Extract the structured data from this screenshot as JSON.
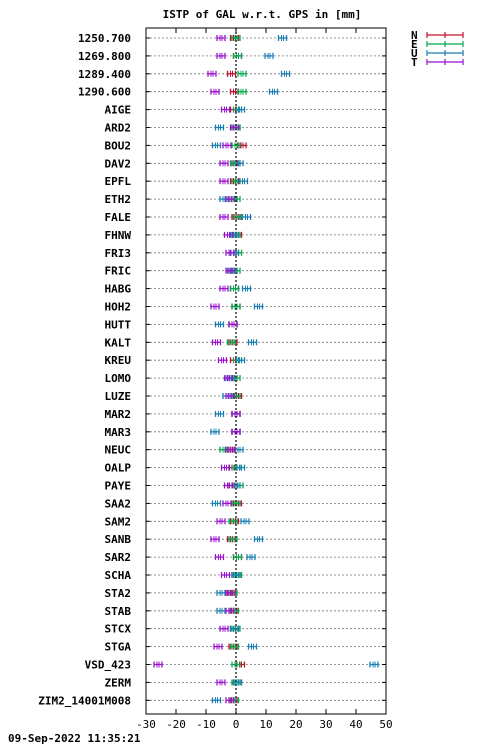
{
  "chart_data": {
    "type": "scatter",
    "title": "ISTP of GAL w.r.t. GPS in [mm]",
    "xlim": [
      -30,
      50
    ],
    "xticks": [
      -30,
      -20,
      -10,
      0,
      10,
      20,
      30,
      40,
      50
    ],
    "grid": true,
    "legend_placement": "top-right",
    "categories": [
      "1250.700",
      "1269.800",
      "1289.400",
      "1290.600",
      "AIGE",
      "ARD2",
      "BOU2",
      "DAV2",
      "EPFL",
      "ETH2",
      "FALE",
      "FHNW",
      "FRI3",
      "FRIC",
      "HABG",
      "HOH2",
      "HUTT",
      "KALT",
      "KREU",
      "LOMO",
      "LUZE",
      "MAR2",
      "MAR3",
      "NEUC",
      "OALP",
      "PAYE",
      "SAA2",
      "SAM2",
      "SANB",
      "SAR2",
      "SCHA",
      "STA2",
      "STAB",
      "STCX",
      "STGA",
      "VSD_423",
      "ZERM",
      "ZIM2_14001M008"
    ],
    "series": [
      {
        "name": "N",
        "color": "#c0102e",
        "values": [
          -0.5,
          0.5,
          -1.5,
          -0.5,
          -0.5,
          0,
          2,
          0,
          -0.5,
          -1,
          0,
          0.5,
          -0.5,
          -1,
          -0.5,
          0,
          -1,
          -1,
          -0.5,
          -1,
          0.5,
          0,
          0,
          -1.5,
          -1,
          -1,
          0.5,
          -0.5,
          -1.5,
          0.5,
          0,
          -1.5,
          -1,
          -0.5,
          -1,
          1.5,
          0.5,
          -1
        ]
      },
      {
        "name": "E",
        "color": "#00a84e",
        "values": [
          0,
          0.5,
          2,
          2,
          0.5,
          0,
          0,
          -0.5,
          0,
          0,
          0.5,
          0,
          0.5,
          0,
          -0.5,
          0,
          -1,
          -1.5,
          0.5,
          0,
          0,
          0,
          0,
          -4,
          0,
          1,
          0,
          -1,
          -1,
          0.5,
          0.5,
          -1,
          -0.5,
          0,
          -0.5,
          0,
          0,
          -0.5
        ]
      },
      {
        "name": "U",
        "color": "#1a7fb5",
        "values": [
          15.5,
          11,
          16.5,
          12.5,
          1.5,
          -5.5,
          -6.5,
          1,
          2.5,
          -4,
          3.5,
          -0.5,
          -0.5,
          -1.5,
          3.5,
          7.5,
          -5.5,
          5.5,
          1.5,
          -2,
          -3,
          -5.5,
          -7,
          1,
          1.5,
          0,
          -6.5,
          3,
          7.5,
          5,
          0,
          -5,
          -5,
          -0.5,
          5.5,
          46,
          0.5,
          -6.5
        ]
      },
      {
        "name": "T",
        "color": "#9b12d1",
        "values": [
          -5,
          -5,
          -8,
          -7,
          -3.5,
          -0.5,
          -3,
          -4,
          -4,
          -2,
          -4,
          -2.5,
          -2,
          -2,
          -4,
          -7,
          -1,
          -6.5,
          -4.5,
          -2.5,
          -2,
          0,
          0,
          -2,
          -3.5,
          -2.5,
          -3,
          -5,
          -7,
          -5.5,
          -3.5,
          -2,
          -2,
          -4,
          -6,
          -26,
          -5,
          -2
        ]
      }
    ]
  },
  "footer": "09-Sep-2022 11:35:21"
}
